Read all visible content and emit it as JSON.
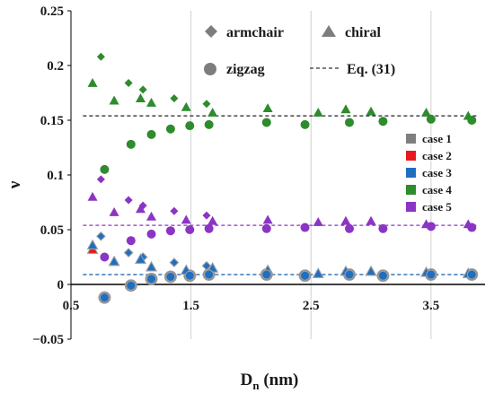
{
  "chart_data": {
    "type": "scatter",
    "xlabel": "D",
    "xlabel_subscript": "n",
    "xlabel_unit": " (nm)",
    "ylabel": "ν",
    "xlim": [
      0.5,
      3.95
    ],
    "ylim": [
      -0.05,
      0.25
    ],
    "x_axis_crosses_y_at": 0,
    "x_ticks": [
      0.5,
      1.5,
      2.5,
      3.5
    ],
    "x_tick_labels": [
      "0.5",
      "1.5",
      "2.5",
      "3.5"
    ],
    "y_ticks": [
      -0.05,
      0,
      0.05,
      0.1,
      0.15,
      0.2,
      0.25
    ],
    "y_tick_labels": [
      "−0.05",
      "0",
      "0.05",
      "0.1",
      "0.15",
      "0.2",
      "0.25"
    ],
    "grid": "vertical",
    "shape_legend": [
      {
        "shape": "diamond",
        "label": "armchair"
      },
      {
        "shape": "triangle",
        "label": "chiral"
      },
      {
        "shape": "circle",
        "label": "zigzag"
      },
      {
        "shape": "dashed-line",
        "label": "Eq. (31)"
      }
    ],
    "case_legend_position": "right",
    "cases": [
      {
        "name": "case 1",
        "color": "#7f7f7f",
        "eq31": 0.009,
        "armchair": [
          [
            0.75,
            0.044
          ],
          [
            0.98,
            0.029
          ],
          [
            1.1,
            0.025
          ],
          [
            1.36,
            0.02
          ],
          [
            1.63,
            0.017
          ]
        ],
        "chiral": [
          [
            0.68,
            0.032
          ],
          [
            0.86,
            0.021
          ],
          [
            1.08,
            0.023
          ],
          [
            1.17,
            0.016
          ],
          [
            1.46,
            0.013
          ],
          [
            1.68,
            0.015
          ],
          [
            2.14,
            0.013
          ],
          [
            2.56,
            0.01
          ],
          [
            2.79,
            0.012
          ],
          [
            3.0,
            0.012
          ],
          [
            3.46,
            0.011
          ],
          [
            3.81,
            0.01
          ]
        ],
        "zigzag": [
          [
            0.78,
            -0.012
          ],
          [
            1.0,
            -0.001
          ],
          [
            1.17,
            0.005
          ],
          [
            1.33,
            0.007
          ],
          [
            1.49,
            0.008
          ],
          [
            1.65,
            0.009
          ],
          [
            2.13,
            0.009
          ],
          [
            2.45,
            0.008
          ],
          [
            2.82,
            0.009
          ],
          [
            3.1,
            0.008
          ],
          [
            3.5,
            0.009
          ],
          [
            3.84,
            0.009
          ]
        ]
      },
      {
        "name": "case 2",
        "color": "#e8191d",
        "eq31": 0.009,
        "armchair": [
          [
            0.75,
            0.044
          ],
          [
            0.98,
            0.029
          ],
          [
            1.1,
            0.025
          ],
          [
            1.36,
            0.02
          ],
          [
            1.63,
            0.017
          ]
        ],
        "chiral": [
          [
            0.68,
            0.032
          ],
          [
            0.86,
            0.021
          ],
          [
            1.08,
            0.023
          ],
          [
            1.17,
            0.016
          ],
          [
            1.46,
            0.013
          ],
          [
            1.68,
            0.015
          ],
          [
            2.14,
            0.013
          ],
          [
            2.56,
            0.01
          ],
          [
            2.79,
            0.012
          ],
          [
            3.0,
            0.012
          ],
          [
            3.46,
            0.011
          ],
          [
            3.81,
            0.01
          ]
        ],
        "zigzag": [
          [
            0.78,
            -0.012
          ],
          [
            1.0,
            -0.001
          ],
          [
            1.17,
            0.005
          ],
          [
            1.33,
            0.007
          ],
          [
            1.49,
            0.008
          ],
          [
            1.65,
            0.009
          ],
          [
            2.13,
            0.009
          ],
          [
            2.45,
            0.008
          ],
          [
            2.82,
            0.009
          ],
          [
            3.1,
            0.008
          ],
          [
            3.5,
            0.009
          ],
          [
            3.84,
            0.009
          ]
        ]
      },
      {
        "name": "case 3",
        "color": "#1f6fc0",
        "eq31": 0.009,
        "armchair": [
          [
            0.75,
            0.044
          ],
          [
            0.98,
            0.029
          ],
          [
            1.1,
            0.025
          ],
          [
            1.36,
            0.02
          ],
          [
            1.63,
            0.017
          ]
        ],
        "chiral": [
          [
            0.68,
            0.036
          ],
          [
            0.86,
            0.021
          ],
          [
            1.08,
            0.023
          ],
          [
            1.17,
            0.016
          ],
          [
            1.46,
            0.013
          ],
          [
            1.68,
            0.015
          ],
          [
            2.14,
            0.013
          ],
          [
            2.56,
            0.01
          ],
          [
            2.79,
            0.012
          ],
          [
            3.0,
            0.012
          ],
          [
            3.46,
            0.011
          ],
          [
            3.81,
            0.01
          ]
        ],
        "zigzag": [
          [
            0.78,
            -0.012
          ],
          [
            1.0,
            -0.001
          ],
          [
            1.17,
            0.005
          ],
          [
            1.33,
            0.007
          ],
          [
            1.49,
            0.008
          ],
          [
            1.65,
            0.009
          ],
          [
            2.13,
            0.009
          ],
          [
            2.45,
            0.008
          ],
          [
            2.82,
            0.009
          ],
          [
            3.1,
            0.008
          ],
          [
            3.5,
            0.009
          ],
          [
            3.84,
            0.009
          ]
        ]
      },
      {
        "name": "case 4",
        "color": "#2e8b2e",
        "eq31": 0.154,
        "armchair": [
          [
            0.75,
            0.208
          ],
          [
            0.98,
            0.184
          ],
          [
            1.1,
            0.178
          ],
          [
            1.36,
            0.17
          ],
          [
            1.63,
            0.165
          ]
        ],
        "chiral": [
          [
            0.68,
            0.184
          ],
          [
            0.86,
            0.168
          ],
          [
            1.08,
            0.17
          ],
          [
            1.17,
            0.166
          ],
          [
            1.46,
            0.162
          ],
          [
            1.68,
            0.157
          ],
          [
            2.14,
            0.161
          ],
          [
            2.56,
            0.157
          ],
          [
            2.79,
            0.16
          ],
          [
            3.0,
            0.158
          ],
          [
            3.46,
            0.157
          ],
          [
            3.81,
            0.154
          ]
        ],
        "zigzag": [
          [
            0.78,
            0.105
          ],
          [
            1.0,
            0.128
          ],
          [
            1.17,
            0.137
          ],
          [
            1.33,
            0.142
          ],
          [
            1.49,
            0.145
          ],
          [
            1.65,
            0.146
          ],
          [
            2.13,
            0.148
          ],
          [
            2.45,
            0.146
          ],
          [
            2.82,
            0.148
          ],
          [
            3.1,
            0.149
          ],
          [
            3.5,
            0.151
          ],
          [
            3.84,
            0.15
          ]
        ]
      },
      {
        "name": "case 5",
        "color": "#8b35c4",
        "eq31": 0.054,
        "armchair": [
          [
            0.75,
            0.096
          ],
          [
            0.98,
            0.077
          ],
          [
            1.1,
            0.072
          ],
          [
            1.36,
            0.067
          ],
          [
            1.63,
            0.063
          ]
        ],
        "chiral": [
          [
            0.68,
            0.08
          ],
          [
            0.86,
            0.066
          ],
          [
            1.08,
            0.069
          ],
          [
            1.17,
            0.062
          ],
          [
            1.46,
            0.059
          ],
          [
            1.68,
            0.058
          ],
          [
            2.14,
            0.059
          ],
          [
            2.56,
            0.057
          ],
          [
            2.79,
            0.058
          ],
          [
            3.0,
            0.058
          ],
          [
            3.46,
            0.055
          ],
          [
            3.81,
            0.055
          ]
        ],
        "zigzag": [
          [
            0.78,
            0.025
          ],
          [
            1.0,
            0.04
          ],
          [
            1.17,
            0.046
          ],
          [
            1.33,
            0.049
          ],
          [
            1.49,
            0.05
          ],
          [
            1.65,
            0.051
          ],
          [
            2.13,
            0.051
          ],
          [
            2.45,
            0.052
          ],
          [
            2.82,
            0.051
          ],
          [
            3.1,
            0.051
          ],
          [
            3.5,
            0.053
          ],
          [
            3.84,
            0.052
          ]
        ]
      }
    ]
  }
}
